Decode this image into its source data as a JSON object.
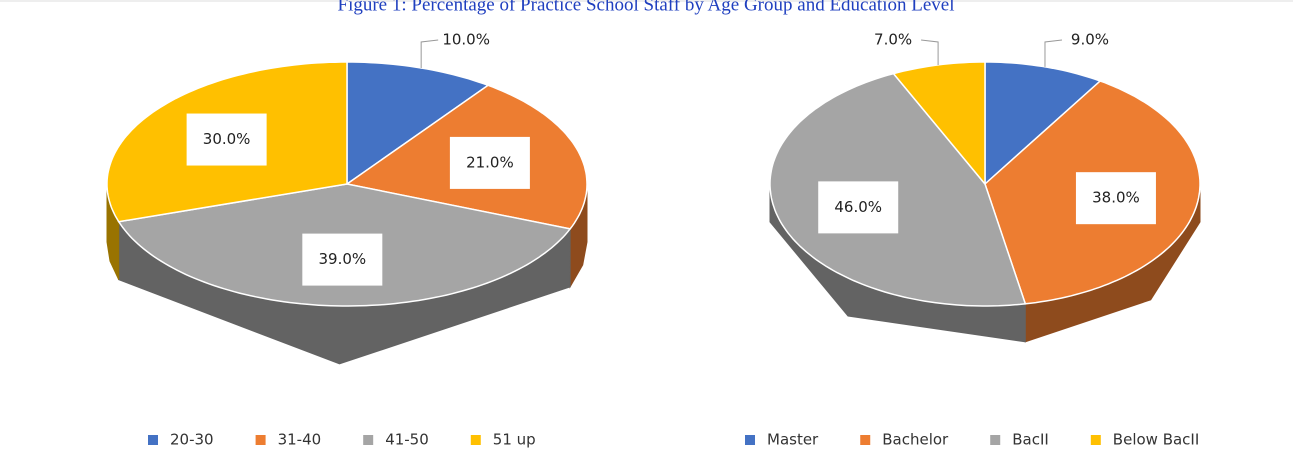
{
  "title": "Figure 1: Percentage of Practice School Staff by Age Group and Education Level",
  "chart_data": [
    {
      "type": "pie",
      "categories": [
        "20-30",
        "31-40",
        "41-50",
        "51 up"
      ],
      "values": [
        10,
        21,
        39,
        30
      ],
      "value_labels": [
        "10.0%",
        "21.0%",
        "39.0%",
        "30.0%"
      ],
      "colors": [
        "#4472c4",
        "#ed7d31",
        "#a5a5a5",
        "#ffc000"
      ]
    },
    {
      "type": "pie",
      "categories": [
        "Master",
        "Bachelor",
        "BacII",
        "Below BacII"
      ],
      "values": [
        9,
        38,
        46,
        7
      ],
      "value_labels": [
        "9.0%",
        "38.0%",
        "46.0%",
        "7.0%"
      ],
      "colors": [
        "#4472c4",
        "#ed7d31",
        "#a5a5a5",
        "#ffc000"
      ]
    }
  ]
}
